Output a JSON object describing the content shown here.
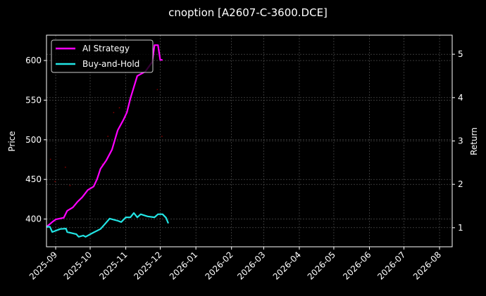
{
  "chart_data": {
    "type": "line",
    "title": "cnoption [A2607-C-3600.DCE]",
    "xlabel": "",
    "ylabel_left": "Price",
    "ylabel_right": "Return",
    "ylim_left": [
      365,
      632
    ],
    "ylim_right": [
      0.56,
      5.44
    ],
    "left_ticks": [
      400,
      450,
      500,
      550,
      600
    ],
    "right_ticks": [
      1,
      2,
      3,
      4,
      5
    ],
    "x_tick_labels": [
      "2025-09",
      "2025-10",
      "2025-11",
      "2025-12",
      "2026-01",
      "2026-02",
      "2026-03",
      "2026-04",
      "2026-05",
      "2026-06",
      "2026-07",
      "2026-08"
    ],
    "x_range_days": [
      -8,
      345
    ],
    "x_tick_days": [
      0,
      30,
      61,
      91,
      122,
      153,
      181,
      212,
      242,
      273,
      303,
      334
    ],
    "grid": true,
    "legend": {
      "position": "upper left",
      "entries": [
        "AI Strategy",
        "Buy-and-Hold"
      ]
    },
    "series": [
      {
        "name": "AI Strategy",
        "axis": "right",
        "color": "#ff00ff",
        "x_days": [
          -8,
          -3,
          0,
          7,
          10,
          15,
          19,
          23,
          28,
          33,
          36,
          39,
          44,
          49,
          52,
          54,
          59,
          62,
          65,
          71,
          78,
          84,
          86,
          89,
          91,
          93
        ],
        "values": [
          1.02,
          1.13,
          1.19,
          1.23,
          1.39,
          1.47,
          1.6,
          1.7,
          1.87,
          1.95,
          2.12,
          2.36,
          2.55,
          2.8,
          3.07,
          3.25,
          3.49,
          3.66,
          3.98,
          4.5,
          4.6,
          4.82,
          5.21,
          5.21,
          4.87,
          4.87
        ]
      },
      {
        "name": "Buy-and-Hold",
        "axis": "right",
        "color": "#22e5e5",
        "x_days": [
          -8,
          -5,
          -3,
          4,
          9,
          10,
          15,
          18,
          20,
          24,
          26,
          33,
          39,
          42,
          47,
          54,
          57,
          61,
          65,
          68,
          71,
          74,
          80,
          86,
          89,
          93,
          96,
          98
        ],
        "values": [
          1.02,
          1.02,
          0.9,
          0.97,
          0.98,
          0.9,
          0.87,
          0.85,
          0.79,
          0.82,
          0.79,
          0.89,
          0.97,
          1.06,
          1.21,
          1.16,
          1.13,
          1.24,
          1.24,
          1.34,
          1.24,
          1.31,
          1.26,
          1.24,
          1.31,
          1.31,
          1.23,
          1.1
        ]
      }
    ],
    "scatter": {
      "name": "Price points",
      "axis": "left",
      "color": "#8b0000",
      "x_days": [
        -5,
        -1,
        8,
        12,
        40,
        45,
        50,
        55,
        70,
        88,
        92
      ],
      "values": [
        476,
        448,
        466,
        443,
        470,
        505,
        535,
        541,
        580,
        564,
        505
      ]
    }
  }
}
